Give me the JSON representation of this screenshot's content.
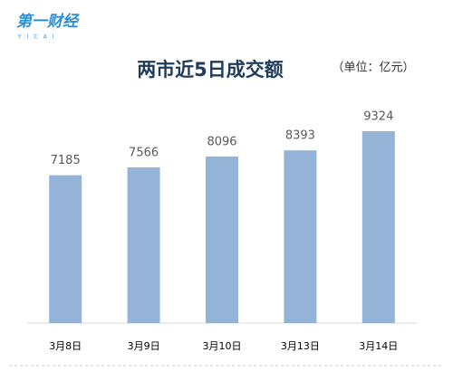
{
  "logo": {
    "text": "第一财经",
    "sub": "YICAI"
  },
  "chart_data": {
    "type": "bar",
    "title": "两市近5日成交额",
    "subtitle": "（单位：亿元）",
    "categories": [
      "3月8日",
      "3月9日",
      "3月10日",
      "3月13日",
      "3月14日"
    ],
    "values": [
      7185,
      7566,
      8096,
      8393,
      9324
    ],
    "color": "#95b3d7"
  }
}
